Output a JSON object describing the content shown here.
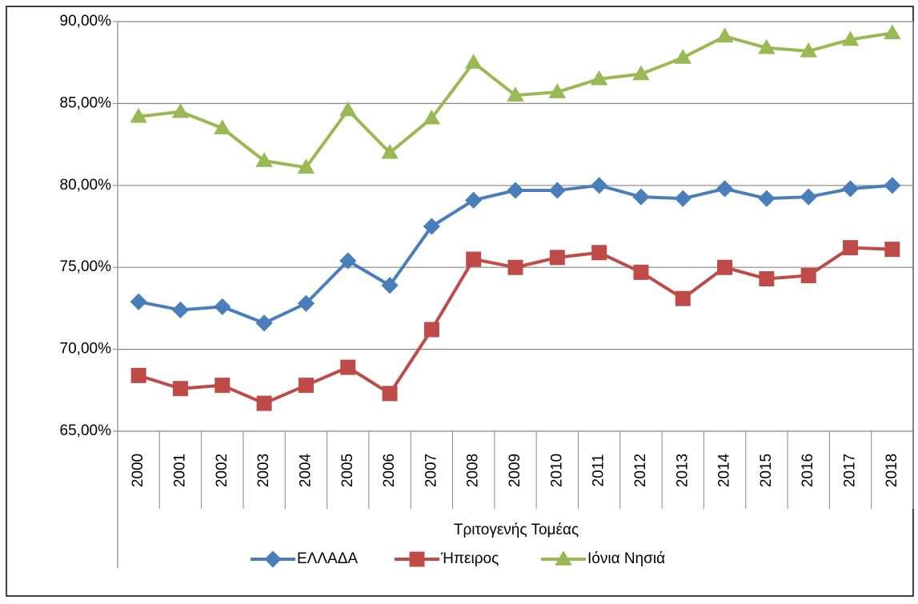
{
  "chart_data": {
    "type": "line",
    "x_label": "Τριτογενής Τομέας",
    "categories": [
      "2000",
      "2001",
      "2002",
      "2003",
      "2004",
      "2005",
      "2006",
      "2007",
      "2008",
      "2009",
      "2010",
      "2011",
      "2012",
      "2013",
      "2014",
      "2015",
      "2016",
      "2017",
      "2018"
    ],
    "series": [
      {
        "name": "ΕΛΛΑΔΑ",
        "color": "#4a7ebb",
        "marker": "diamond",
        "values": [
          72.9,
          72.4,
          72.6,
          71.6,
          72.8,
          75.4,
          73.9,
          77.5,
          79.1,
          79.7,
          79.7,
          80.0,
          79.3,
          79.2,
          79.8,
          79.2,
          79.3,
          79.8,
          80.0
        ]
      },
      {
        "name": "Ήπειρος",
        "color": "#be4b48",
        "marker": "square",
        "values": [
          68.4,
          67.6,
          67.8,
          66.7,
          67.8,
          68.9,
          67.3,
          71.2,
          75.5,
          75.0,
          75.6,
          75.9,
          74.7,
          73.1,
          75.0,
          74.3,
          74.5,
          76.2,
          76.1
        ]
      },
      {
        "name": "Ιόνια Νησιά",
        "color": "#98b954",
        "marker": "triangle",
        "values": [
          84.2,
          84.5,
          83.5,
          81.5,
          81.1,
          84.6,
          82.0,
          84.1,
          87.5,
          85.5,
          85.7,
          86.5,
          86.8,
          87.8,
          89.1,
          88.4,
          88.2,
          88.9,
          89.3
        ]
      }
    ],
    "ylim": [
      65,
      90
    ],
    "yticks": [
      {
        "value": 65,
        "label": "65,00%"
      },
      {
        "value": 70,
        "label": "70,00%"
      },
      {
        "value": 75,
        "label": "75,00%"
      },
      {
        "value": 80,
        "label": "80,00%"
      },
      {
        "value": 85,
        "label": "85,00%"
      },
      {
        "value": 90,
        "label": "90,00%"
      }
    ],
    "grid": true,
    "legend": "bottom"
  }
}
